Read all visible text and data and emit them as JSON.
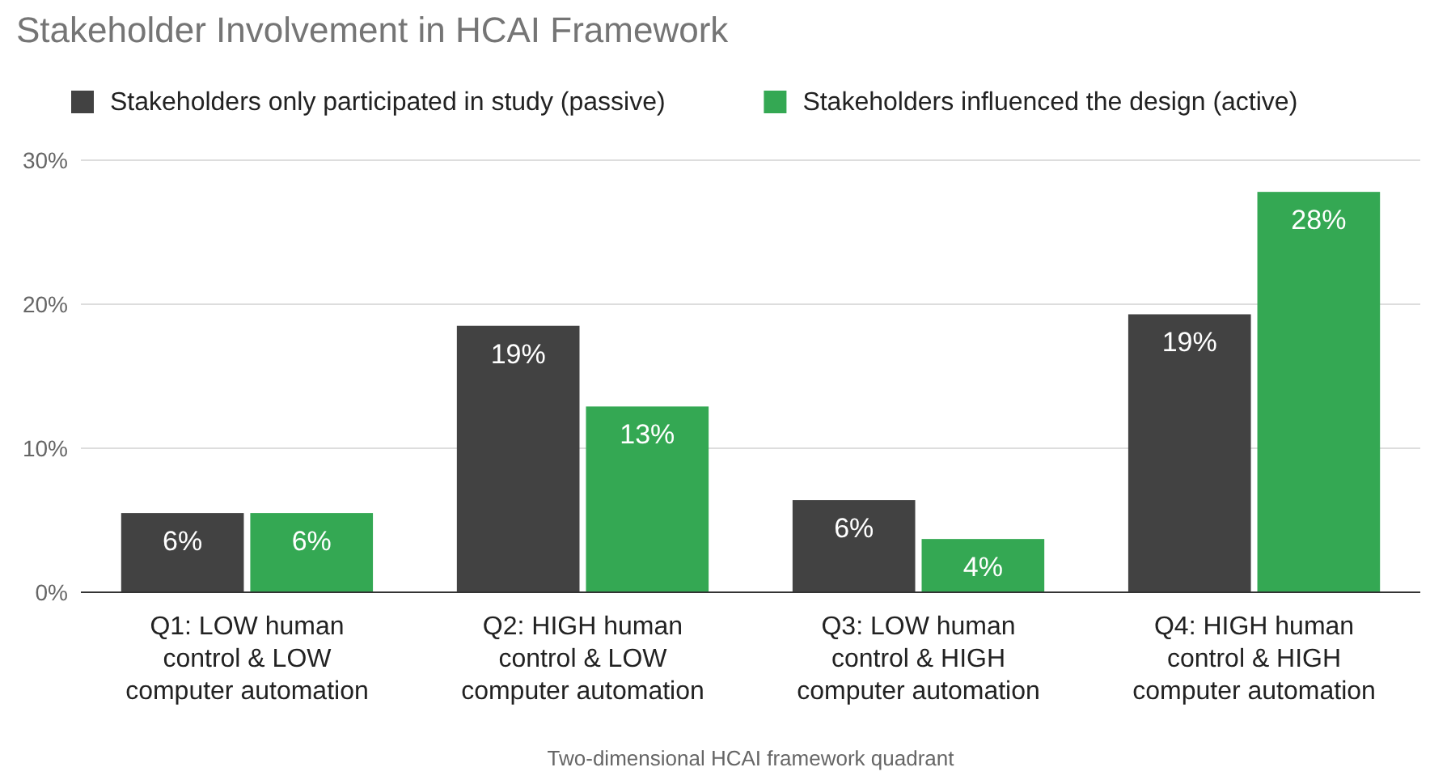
{
  "chart_data": {
    "type": "bar",
    "title": "Stakeholder Involvement in HCAI Framework",
    "xlabel": "Two-dimensional HCAI framework quadrant",
    "categories": [
      "Q1: LOW human control & LOW computer automation",
      "Q2: HIGH human control & LOW computer automation",
      "Q3: LOW human control & HIGH computer automation",
      "Q4: HIGH human control & HIGH computer automation"
    ],
    "series": [
      {
        "name": "Stakeholders only participated in study (passive)",
        "color": "#424242",
        "values": [
          5.5,
          18.5,
          6.4,
          19.3
        ],
        "value_labels": [
          "6%",
          "19%",
          "6%",
          "19%"
        ]
      },
      {
        "name": "Stakeholders influenced the design (active)",
        "color": "#34a853",
        "values": [
          5.5,
          12.9,
          3.7,
          27.8
        ],
        "value_labels": [
          "6%",
          "13%",
          "4%",
          "28%"
        ]
      }
    ],
    "ylim": [
      0,
      30
    ],
    "yticks": [
      {
        "value": 0,
        "label": "0%"
      },
      {
        "value": 10,
        "label": "10%"
      },
      {
        "value": 20,
        "label": "20%"
      },
      {
        "value": 30,
        "label": "30%"
      }
    ],
    "grid": "y",
    "legend": "top"
  }
}
